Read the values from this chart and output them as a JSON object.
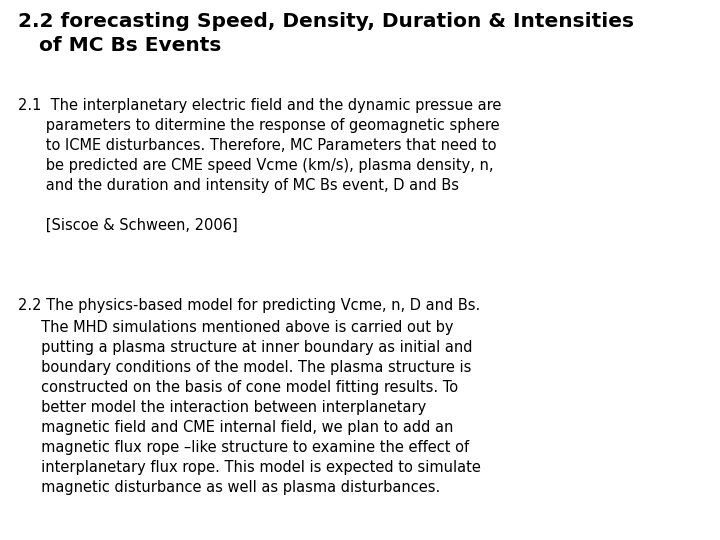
{
  "bg_color": "#ffffff",
  "text_color": "#000000",
  "title_line1": "2.2 forecasting Speed, Density, Duration & Intensities",
  "title_line2": "   of MC Bs Events",
  "title_fontsize": 14.5,
  "body_fontsize": 10.5,
  "section_21": "2.1  The interplanetary electric field and the dynamic pressue are\n      parameters to ditermine the response of geomagnetic sphere\n      to ICME disturbances. Therefore, MC Parameters that need to\n      be predicted are CME speed Vcme (km/s), plasma density, n,\n      and the duration and intensity of MC Bs event, D and Bs\n\n      [Siscoe & Schween, 2006]",
  "section_22_first": "2.2 The physics-based model for predicting Vcme, n, D and Bs.",
  "section_22_body": "     The MHD simulations mentioned above is carried out by\n     putting a plasma structure at inner boundary as initial and\n     boundary conditions of the model. The plasma structure is\n     constructed on the basis of cone model fitting results. To\n     better model the interaction between interplanetary\n     magnetic field and CME internal field, we plan to add an\n     magnetic flux rope –like structure to examine the effect of\n     interplanetary flux rope. This model is expected to simulate\n     magnetic disturbance as well as plasma disturbances."
}
